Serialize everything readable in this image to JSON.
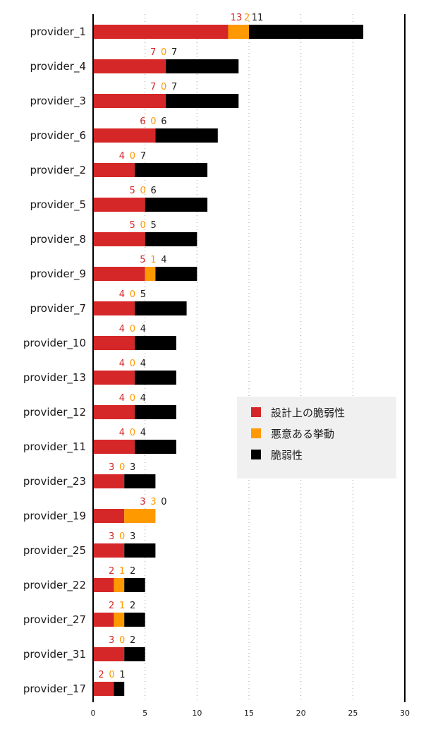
{
  "chart_data": {
    "type": "bar",
    "orientation": "horizontal",
    "stacked": true,
    "categories": [
      "provider_1",
      "provider_4",
      "provider_3",
      "provider_6",
      "provider_2",
      "provider_5",
      "provider_8",
      "provider_9",
      "provider_7",
      "provider_10",
      "provider_13",
      "provider_12",
      "provider_11",
      "provider_23",
      "provider_19",
      "provider_25",
      "provider_22",
      "provider_27",
      "provider_31",
      "provider_17"
    ],
    "series": [
      {
        "name": "設計上の脆弱性",
        "color": "#d62728",
        "values": [
          13,
          7,
          7,
          6,
          4,
          5,
          5,
          5,
          4,
          4,
          4,
          4,
          4,
          3,
          3,
          3,
          2,
          2,
          3,
          2
        ]
      },
      {
        "name": "悪意ある挙動",
        "color": "#ff9900",
        "values": [
          2,
          0,
          0,
          0,
          0,
          0,
          0,
          1,
          0,
          0,
          0,
          0,
          0,
          0,
          3,
          0,
          1,
          1,
          0,
          0
        ]
      },
      {
        "name": "脆弱性",
        "color": "#000000",
        "values": [
          11,
          7,
          7,
          6,
          7,
          6,
          5,
          4,
          5,
          4,
          4,
          4,
          4,
          3,
          0,
          3,
          2,
          2,
          2,
          1
        ]
      }
    ],
    "xlim": [
      0,
      30
    ],
    "xticks": [
      0,
      5,
      10,
      15,
      20,
      25,
      30
    ],
    "grid": "x-dotted",
    "legend_position": "right-middle",
    "title": "",
    "xlabel": "",
    "ylabel": ""
  }
}
